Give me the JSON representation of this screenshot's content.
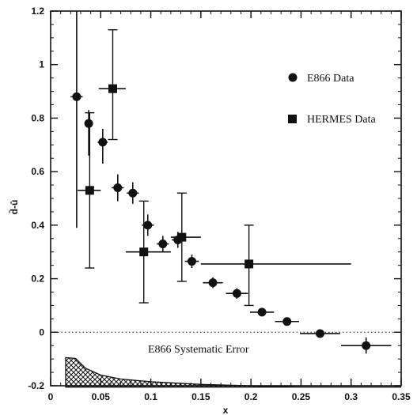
{
  "chart_data": {
    "type": "scatter",
    "title": "",
    "xlabel": "x",
    "ylabel": "d̄-ū",
    "xlim": [
      0,
      0.35
    ],
    "ylim": [
      -0.2,
      1.2
    ],
    "xticks": [
      0,
      0.05,
      0.1,
      0.15,
      0.2,
      0.25,
      0.3,
      0.35
    ],
    "xtick_labels": [
      "0",
      "0.05",
      "0.1",
      "0.15",
      "0.2",
      "0.25",
      "0.3",
      "0.35"
    ],
    "yticks": [
      -0.2,
      0,
      0.2,
      0.4,
      0.6,
      0.8,
      1,
      1.2
    ],
    "ytick_labels": [
      "-0.2",
      "0",
      "0.2",
      "0.4",
      "0.6",
      "0.8",
      "1",
      "1.2"
    ],
    "grid": false,
    "legend_position": "top-right",
    "zero_line": "dotted",
    "series": [
      {
        "name": "E866 Data",
        "marker": "circle",
        "points": [
          {
            "x": 0.026,
            "y": 0.88,
            "xerr": 0.006,
            "yerr_lo": 0.49,
            "yerr_hi": 0.32
          },
          {
            "x": 0.038,
            "y": 0.78,
            "xerr": 0.004,
            "yerr_lo": 0.12,
            "yerr_hi": 0.05
          },
          {
            "x": 0.052,
            "y": 0.71,
            "xerr": 0.005,
            "yerr_lo": 0.08,
            "yerr_hi": 0.05
          },
          {
            "x": 0.067,
            "y": 0.54,
            "xerr": 0.006,
            "yerr_lo": 0.05,
            "yerr_hi": 0.05
          },
          {
            "x": 0.082,
            "y": 0.52,
            "xerr": 0.006,
            "yerr_lo": 0.04,
            "yerr_hi": 0.04
          },
          {
            "x": 0.097,
            "y": 0.4,
            "xerr": 0.006,
            "yerr_lo": 0.04,
            "yerr_hi": 0.04
          },
          {
            "x": 0.112,
            "y": 0.33,
            "xerr": 0.006,
            "yerr_lo": 0.03,
            "yerr_hi": 0.03
          },
          {
            "x": 0.127,
            "y": 0.345,
            "xerr": 0.006,
            "yerr_lo": 0.03,
            "yerr_hi": 0.03
          },
          {
            "x": 0.141,
            "y": 0.265,
            "xerr": 0.007,
            "yerr_lo": 0.025,
            "yerr_hi": 0.025
          },
          {
            "x": 0.162,
            "y": 0.185,
            "xerr": 0.01,
            "yerr_lo": 0.02,
            "yerr_hi": 0.02
          },
          {
            "x": 0.186,
            "y": 0.145,
            "xerr": 0.011,
            "yerr_lo": 0.02,
            "yerr_hi": 0.02
          },
          {
            "x": 0.211,
            "y": 0.075,
            "xerr": 0.012,
            "yerr_lo": 0.015,
            "yerr_hi": 0.015
          },
          {
            "x": 0.236,
            "y": 0.04,
            "xerr": 0.012,
            "yerr_lo": 0.015,
            "yerr_hi": 0.015
          },
          {
            "x": 0.269,
            "y": -0.005,
            "xerr": 0.02,
            "yerr_lo": 0.01,
            "yerr_hi": 0.01
          },
          {
            "x": 0.315,
            "y": -0.05,
            "xerr": 0.025,
            "yerr_lo": 0.03,
            "yerr_hi": 0.03
          }
        ]
      },
      {
        "name": "HERMES Data",
        "marker": "square",
        "points": [
          {
            "x": 0.039,
            "y": 0.53,
            "x_lo": 0.027,
            "x_hi": 0.05,
            "y_lo": 0.24,
            "y_hi": 0.82
          },
          {
            "x": 0.062,
            "y": 0.91,
            "x_lo": 0.048,
            "x_hi": 0.075,
            "y_lo": 0.72,
            "y_hi": 1.13
          },
          {
            "x": 0.093,
            "y": 0.3,
            "x_lo": 0.075,
            "x_hi": 0.12,
            "y_lo": 0.11,
            "y_hi": 0.49
          },
          {
            "x": 0.131,
            "y": 0.355,
            "x_lo": 0.12,
            "x_hi": 0.15,
            "y_lo": 0.19,
            "y_hi": 0.52
          },
          {
            "x": 0.198,
            "y": 0.255,
            "x_lo": 0.15,
            "x_hi": 0.3,
            "y_lo": 0.1,
            "y_hi": 0.4
          }
        ]
      }
    ],
    "systematic_band": {
      "label": "E866 Systematic Error",
      "x": [
        0.015,
        0.025,
        0.035,
        0.05,
        0.07,
        0.1,
        0.15,
        0.2,
        0.25,
        0.3,
        0.35
      ],
      "upper": [
        -0.095,
        -0.098,
        -0.135,
        -0.16,
        -0.175,
        -0.185,
        -0.195,
        -0.2,
        -0.205,
        -0.205,
        -0.205
      ],
      "lower": [
        -0.205,
        -0.205,
        -0.205,
        -0.205,
        -0.205,
        -0.205,
        -0.205,
        -0.205,
        -0.205,
        -0.205,
        -0.205
      ]
    }
  }
}
